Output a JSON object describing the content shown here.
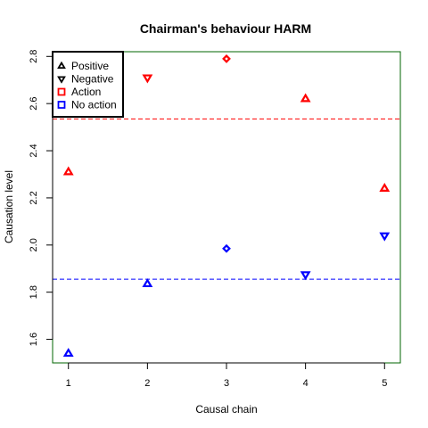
{
  "chart_data": {
    "type": "scatter",
    "title": "Chairman's behaviour HARM",
    "xlabel": "Causal chain",
    "ylabel": "Causation level",
    "xlim": [
      0.8,
      5.2
    ],
    "ylim": [
      1.5,
      2.82
    ],
    "x_ticks": [
      "1",
      "2",
      "3",
      "4",
      "5"
    ],
    "y_ticks": [
      "1.6",
      "1.8",
      "2.0",
      "2.2",
      "2.4",
      "2.6",
      "2.8"
    ],
    "grid": false,
    "frame_color": "#006400",
    "legend": {
      "placement": "top-left",
      "entries": [
        {
          "label": "Positive",
          "symbol": "triangle-up",
          "color": "#000000"
        },
        {
          "label": "Negative",
          "symbol": "triangle-down",
          "color": "#000000"
        },
        {
          "label": "Action",
          "symbol": "square",
          "color": "#ff0000"
        },
        {
          "label": "No action",
          "symbol": "square",
          "color": "#0000ff"
        }
      ]
    },
    "series": [
      {
        "color": "#ff0000",
        "points": [
          {
            "x": 1,
            "y": 2.31,
            "shape": "triangle-up"
          },
          {
            "x": 2,
            "y": 2.71,
            "shape": "triangle-down"
          },
          {
            "x": 3,
            "y": 2.79,
            "shape": "diamond"
          },
          {
            "x": 4,
            "y": 2.62,
            "shape": "triangle-up"
          },
          {
            "x": 5,
            "y": 2.24,
            "shape": "triangle-up"
          }
        ],
        "reference_line": 2.535
      },
      {
        "color": "#0000ff",
        "points": [
          {
            "x": 1,
            "y": 1.54,
            "shape": "triangle-up"
          },
          {
            "x": 2,
            "y": 1.835,
            "shape": "triangle-up"
          },
          {
            "x": 3,
            "y": 1.985,
            "shape": "diamond"
          },
          {
            "x": 4,
            "y": 1.875,
            "shape": "triangle-down"
          },
          {
            "x": 5,
            "y": 2.04,
            "shape": "triangle-down"
          }
        ],
        "reference_line": 1.855
      }
    ]
  }
}
